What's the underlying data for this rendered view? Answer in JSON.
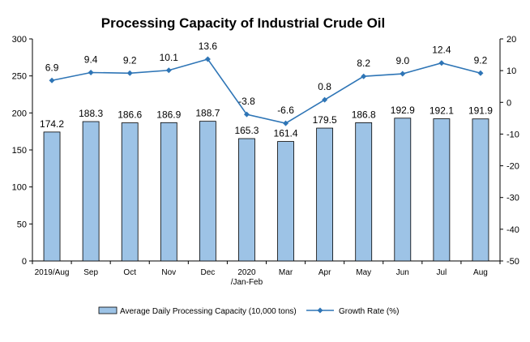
{
  "chart_data": {
    "type": "bar+line",
    "title": "Processing Capacity of Industrial Crude Oil",
    "categories": [
      [
        "2019/Aug"
      ],
      [
        "Sep"
      ],
      [
        "Oct"
      ],
      [
        "Nov"
      ],
      [
        "Dec"
      ],
      [
        "2020",
        "/Jan-Feb"
      ],
      [
        "Mar"
      ],
      [
        "Apr"
      ],
      [
        "May"
      ],
      [
        "Jun"
      ],
      [
        "Jul"
      ],
      [
        "Aug"
      ]
    ],
    "bar_series": {
      "name": "Average Daily Processing Capacity (10,000 tons)",
      "axis": "left",
      "values": [
        174.2,
        188.3,
        186.6,
        186.9,
        188.7,
        165.3,
        161.4,
        179.5,
        186.8,
        192.9,
        192.1,
        191.9
      ],
      "labels": [
        "174.2",
        "188.3",
        "186.6",
        "186.9",
        "188.7",
        "165.3",
        "161.4",
        "179.5",
        "186.8",
        "192.9",
        "192.1",
        "191.9"
      ],
      "color": "#9DC3E6",
      "stroke": "#000000"
    },
    "line_series": {
      "name": "Growth Rate (%)",
      "axis": "right",
      "values": [
        6.9,
        9.4,
        9.2,
        10.1,
        13.6,
        -3.8,
        -6.6,
        0.8,
        8.2,
        9.0,
        12.4,
        9.2
      ],
      "labels": [
        "6.9",
        "9.4",
        "9.2",
        "10.1",
        "13.6",
        "-3.8",
        "-6.6",
        "0.8",
        "8.2",
        "9.0",
        "12.4",
        "9.2"
      ],
      "color": "#2E75B6"
    },
    "y_left": {
      "min": 0,
      "max": 300,
      "ticks": [
        0,
        50,
        100,
        150,
        200,
        250,
        300
      ]
    },
    "y_right": {
      "min": -50,
      "max": 20,
      "ticks": [
        -50,
        -40,
        -30,
        -20,
        -10,
        0,
        10,
        20
      ]
    },
    "legend_position": "bottom",
    "grid": false
  }
}
